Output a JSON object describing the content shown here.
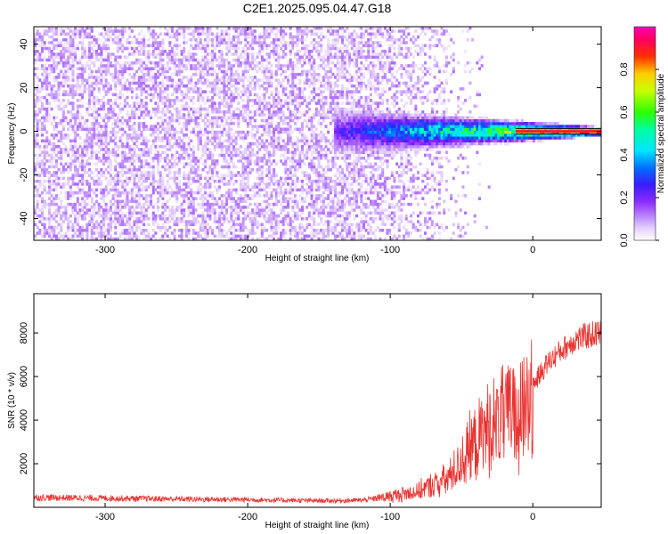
{
  "title": "C2E1.2025.095.04.47.G18",
  "chart_data": [
    {
      "type": "heatmap",
      "xlabel": "Height of straight line (km)",
      "ylabel": "Frequency (Hz)",
      "xlim": [
        -350,
        48
      ],
      "ylim": [
        -50,
        48
      ],
      "xticks": [
        -300,
        -200,
        -100,
        0
      ],
      "yticks": [
        -40,
        -20,
        0,
        20,
        40
      ],
      "colorbar": {
        "label": "Normalized spectral amplitude",
        "range": [
          0,
          1
        ],
        "ticks": [
          0.0,
          0.2,
          0.4,
          0.6,
          0.8
        ],
        "colormap": "rainbow: white-purple-blue-cyan-green-yellow-red-magenta"
      },
      "features": {
        "noise_region_x": [
          -350,
          -120
        ],
        "noise_amplitude": 0.1,
        "signal_band_frequency_hz": 0,
        "signal_band_start_x": -140,
        "signal_peak_amplitude": 0.95,
        "signal_peak_region_x": [
          -20,
          48
        ]
      }
    },
    {
      "type": "line",
      "xlabel": "Height of straight line (km)",
      "ylabel": "SNR (10 * v/v)",
      "xlim": [
        -350,
        48
      ],
      "ylim": [
        0,
        9800
      ],
      "xticks": [
        -300,
        -200,
        -100,
        0
      ],
      "yticks": [
        2000,
        4000,
        6000,
        8000
      ],
      "series": [
        {
          "color": "#e8322f",
          "x": [
            -350,
            -300,
            -250,
            -200,
            -150,
            -120,
            -100,
            -80,
            -60,
            -50,
            -40,
            -30,
            -25,
            -20,
            -15,
            -10,
            -5,
            0,
            10,
            20,
            30,
            40,
            48
          ],
          "values": [
            450,
            420,
            380,
            350,
            300,
            320,
            500,
            750,
            1300,
            2100,
            3000,
            3700,
            3900,
            4100,
            4300,
            3900,
            4700,
            5600,
            6600,
            7200,
            7700,
            7900,
            8000
          ]
        }
      ]
    }
  ]
}
